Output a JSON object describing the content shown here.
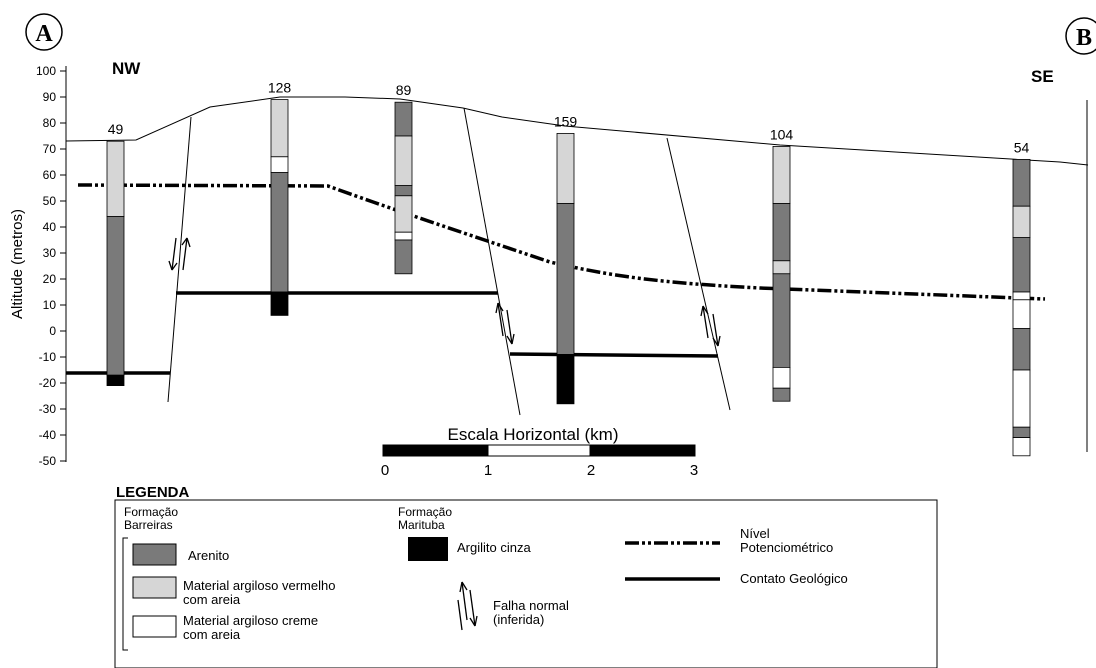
{
  "panel_labels": [
    "A",
    "B"
  ],
  "orientation": {
    "left": "NW",
    "right": "SE"
  },
  "y_axis": {
    "label": "Altitude (metros)",
    "ticks": [
      100,
      90,
      80,
      70,
      60,
      50,
      40,
      30,
      20,
      10,
      0,
      -10,
      -20,
      -30,
      -40,
      -50
    ],
    "range": [
      -50,
      100
    ]
  },
  "wells": [
    {
      "id": "49",
      "top": 73,
      "layers": [
        {
          "from": 73,
          "to": 44,
          "material": "argiloso_vermelho"
        },
        {
          "from": 44,
          "to": -17,
          "material": "arenito"
        },
        {
          "from": -17,
          "to": -21,
          "material": "argilito"
        }
      ]
    },
    {
      "id": "128",
      "top": 89,
      "layers": [
        {
          "from": 89,
          "to": 67,
          "material": "argiloso_vermelho"
        },
        {
          "from": 67,
          "to": 61,
          "material": "argiloso_creme"
        },
        {
          "from": 61,
          "to": 15,
          "material": "arenito"
        },
        {
          "from": 15,
          "to": 6,
          "material": "argilito"
        }
      ]
    },
    {
      "id": "89",
      "top": 88,
      "layers": [
        {
          "from": 88,
          "to": 75,
          "material": "arenito"
        },
        {
          "from": 75,
          "to": 56,
          "material": "argiloso_vermelho"
        },
        {
          "from": 56,
          "to": 52,
          "material": "arenito"
        },
        {
          "from": 52,
          "to": 38,
          "material": "argiloso_vermelho"
        },
        {
          "from": 38,
          "to": 35,
          "material": "argiloso_creme"
        },
        {
          "from": 35,
          "to": 22,
          "material": "arenito"
        }
      ]
    },
    {
      "id": "159",
      "top": 76,
      "layers": [
        {
          "from": 76,
          "to": 49,
          "material": "argiloso_vermelho"
        },
        {
          "from": 49,
          "to": -9,
          "material": "arenito"
        },
        {
          "from": -9,
          "to": -28,
          "material": "argilito"
        }
      ]
    },
    {
      "id": "104",
      "top": 71,
      "layers": [
        {
          "from": 71,
          "to": 49,
          "material": "argiloso_vermelho"
        },
        {
          "from": 49,
          "to": 27,
          "material": "arenito"
        },
        {
          "from": 27,
          "to": 22,
          "material": "argiloso_vermelho"
        },
        {
          "from": 22,
          "to": -14,
          "material": "arenito"
        },
        {
          "from": -14,
          "to": -22,
          "material": "argiloso_creme"
        },
        {
          "from": -22,
          "to": -27,
          "material": "arenito"
        }
      ]
    },
    {
      "id": "54",
      "top": 66,
      "layers": [
        {
          "from": 66,
          "to": 48,
          "material": "arenito"
        },
        {
          "from": 48,
          "to": 36,
          "material": "argiloso_vermelho"
        },
        {
          "from": 36,
          "to": 15,
          "material": "arenito"
        },
        {
          "from": 15,
          "to": 12,
          "material": "argiloso_creme"
        },
        {
          "from": 12,
          "to": 1,
          "material": "argiloso_creme"
        },
        {
          "from": 1,
          "to": -15,
          "material": "arenito"
        },
        {
          "from": -15,
          "to": -37,
          "material": "argiloso_creme"
        },
        {
          "from": -37,
          "to": -41,
          "material": "arenito"
        },
        {
          "from": -41,
          "to": -48,
          "material": "argiloso_creme"
        }
      ]
    }
  ],
  "materials": {
    "arenito": "#7a7a7a",
    "argiloso_vermelho": "#d6d6d6",
    "argiloso_creme": "#ffffff",
    "argilito": "#000000"
  },
  "scale_bar": {
    "title": "Escala Horizontal (km)",
    "ticks": [
      "0",
      "1",
      "2",
      "3"
    ]
  },
  "legend": {
    "title": "LEGENDA",
    "group1_title_line1": "Formação",
    "group1_title_line2": "Barreiras",
    "arenito": "Arenito",
    "vermelho_line1": "Material argiloso vermelho",
    "vermelho_line2": "com areia",
    "creme_line1": "Material argiloso creme",
    "creme_line2": "com areia",
    "group2_title_line1": "Formação",
    "group2_title_line2": "Marituba",
    "argilito": "Argilito cinza",
    "falha_line1": "Falha normal",
    "falha_line2": "(inferida)",
    "nivel_line1": "Nível",
    "nivel_line2": "Potenciométrico",
    "contato": "Contato Geológico"
  }
}
